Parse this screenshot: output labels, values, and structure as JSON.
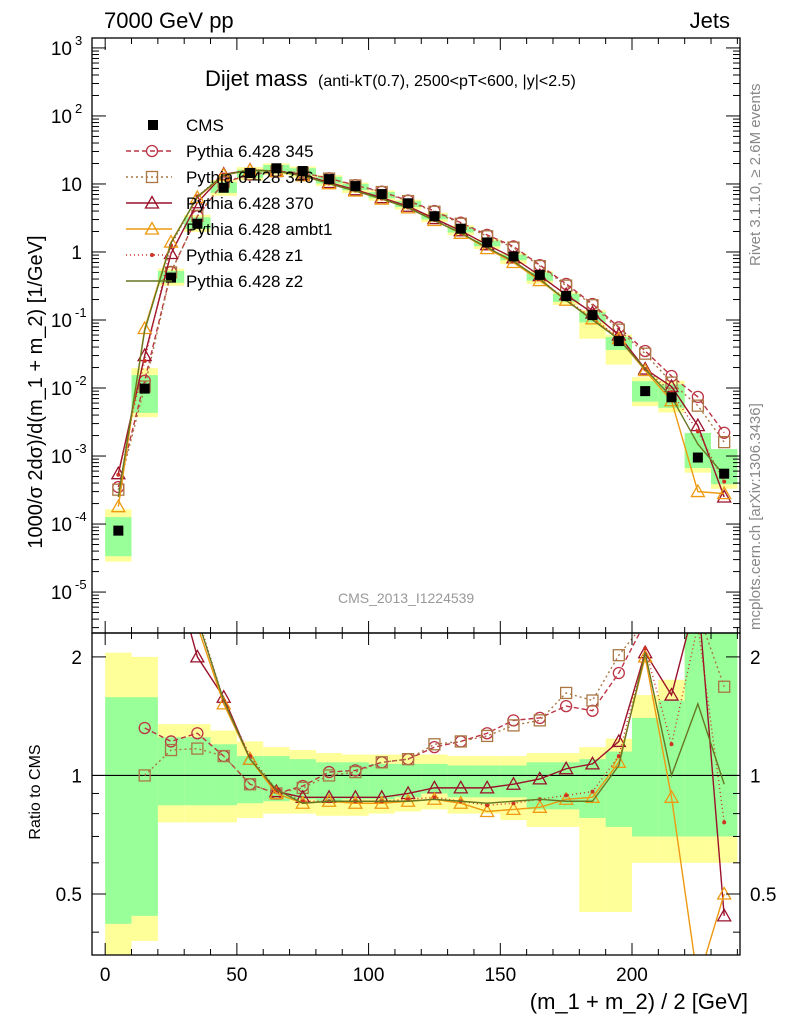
{
  "header": {
    "left": "7000 GeV pp",
    "right": "Jets"
  },
  "side_labels": {
    "rivet": "Rivet 3.1.10, ≥ 2.6M events",
    "mcplots": "mcplots.cern.ch [arXiv:1306.3436]"
  },
  "watermark": "CMS_2013_I1224539",
  "chart_data": {
    "type": "scatter",
    "title": "Dijet mass",
    "subtitle": "(anti-kT(0.7), 2500<pT<600, |y|<2.5)",
    "xlabel": "(m_1 + m_2) / 2 [GeV]",
    "ylabel": "1000/σ 2dσ)/d(m_1 + m_2) [1/GeV]",
    "ratio_ylabel": "Ratio to CMS",
    "xlim": [
      -5,
      241
    ],
    "ylim": [
      2.5e-06,
      1400
    ],
    "ylog": true,
    "ratio_ylim": [
      0.35,
      2.3
    ],
    "x_ticks": [
      "0",
      "50",
      "100",
      "150",
      "200"
    ],
    "y_ticks": [
      "10^-5",
      "10^-4",
      "10^-3",
      "10^-2",
      "10^-1",
      "1",
      "10",
      "10^2",
      "10^3"
    ],
    "ratio_ticks": [
      "0.5",
      "1",
      "2"
    ],
    "legend_position": "top-left",
    "x": [
      5,
      15,
      25,
      35,
      45,
      55,
      65,
      75,
      85,
      95,
      105,
      115,
      125,
      135,
      145,
      155,
      165,
      175,
      185,
      195,
      205,
      215,
      225,
      235
    ],
    "data": {
      "name": "CMS",
      "values": [
        8e-05,
        0.0098,
        0.42,
        2.6,
        8.8,
        14.5,
        17.0,
        15.5,
        11.8,
        9.3,
        7.1,
        5.2,
        3.35,
        2.2,
        1.38,
        0.86,
        0.46,
        0.225,
        0.118,
        0.049,
        0.009,
        0.0073,
        0.00095,
        0.00055
      ],
      "band_inner_lo": [
        0.42,
        0.44,
        0.84,
        0.84,
        0.84,
        0.85,
        0.86,
        0.87,
        0.86,
        0.87,
        0.87,
        0.88,
        0.9,
        0.88,
        0.88,
        0.88,
        0.82,
        0.82,
        0.78,
        0.74,
        0.7,
        0.7,
        0.7,
        0.7
      ],
      "band_inner_hi": [
        1.58,
        1.58,
        1.25,
        1.25,
        1.2,
        1.12,
        1.12,
        1.1,
        1.08,
        1.08,
        1.07,
        1.07,
        1.07,
        1.06,
        1.06,
        1.06,
        1.08,
        1.08,
        1.1,
        1.15,
        1.4,
        1.55,
        2.3,
        2.3
      ],
      "band_outer_lo": [
        0.35,
        0.38,
        0.76,
        0.76,
        0.76,
        0.78,
        0.8,
        0.8,
        0.79,
        0.79,
        0.8,
        0.81,
        0.82,
        0.8,
        0.8,
        0.77,
        0.74,
        0.74,
        0.45,
        0.45,
        0.6,
        0.6,
        0.6,
        0.6
      ],
      "band_outer_hi": [
        2.05,
        2.0,
        1.35,
        1.35,
        1.3,
        1.22,
        1.18,
        1.16,
        1.14,
        1.13,
        1.13,
        1.13,
        1.13,
        1.12,
        1.12,
        1.12,
        1.14,
        1.14,
        1.18,
        1.24,
        1.6,
        1.75,
        2.3,
        2.3
      ]
    },
    "series": [
      {
        "name": "Pythia 6.428 345",
        "color": "#bb3344",
        "dash": "5,3",
        "marker": "circle",
        "values": [
          0.00035,
          0.0128,
          0.51,
          3.35,
          10.5,
          13.7,
          15.2,
          14.6,
          12.1,
          9.6,
          7.7,
          5.7,
          4.0,
          2.7,
          1.78,
          1.21,
          0.64,
          0.34,
          0.172,
          0.078,
          0.035,
          0.015,
          0.0074,
          0.0022
        ],
        "ratio": [
          null,
          1.32,
          1.22,
          1.28,
          1.12,
          0.95,
          0.9,
          0.94,
          1.02,
          1.03,
          1.08,
          1.1,
          1.18,
          1.22,
          1.28,
          1.38,
          1.4,
          1.5,
          1.46,
          1.82,
          2.45,
          2.6,
          2.6,
          null
        ]
      },
      {
        "name": "Pythia 6.428 346",
        "color": "#aa7744",
        "dash": "2,3",
        "marker": "square",
        "values": [
          0.00032,
          0.0105,
          0.5,
          3.4,
          10.7,
          14.0,
          15.4,
          14.6,
          12.0,
          9.5,
          7.6,
          5.6,
          3.9,
          2.6,
          1.7,
          1.16,
          0.62,
          0.32,
          0.165,
          0.072,
          0.032,
          0.012,
          0.0055,
          0.0016
        ],
        "ratio": [
          null,
          1.0,
          1.16,
          1.17,
          1.12,
          0.95,
          0.9,
          0.93,
          1.0,
          1.02,
          1.08,
          1.1,
          1.2,
          1.22,
          1.26,
          1.34,
          1.38,
          1.62,
          1.55,
          2.02,
          2.45,
          2.6,
          2.6,
          1.68
        ]
      },
      {
        "name": "Pythia 6.428 370",
        "color": "#99112a",
        "dash": "",
        "marker": "triangle-open",
        "values": [
          0.00055,
          0.03,
          0.95,
          5.3,
          13.9,
          16.0,
          15.5,
          13.7,
          10.5,
          8.2,
          6.3,
          4.7,
          3.1,
          2.05,
          1.28,
          0.82,
          0.45,
          0.235,
          0.127,
          0.06,
          0.019,
          0.0105,
          0.0028,
          0.00025
        ],
        "ratio": [
          null,
          3.6,
          3.5,
          2.0,
          1.58,
          1.1,
          0.91,
          0.88,
          0.88,
          0.88,
          0.88,
          0.9,
          0.93,
          0.93,
          0.93,
          0.95,
          0.98,
          1.04,
          1.07,
          1.22,
          2.05,
          1.6,
          2.9,
          0.44
        ]
      },
      {
        "name": "Pythia 6.428 ambt1",
        "color": "#ee9911",
        "dash": "",
        "marker": "triangle-open",
        "values": [
          0.00018,
          0.075,
          1.4,
          6.3,
          13.5,
          15.9,
          15.3,
          13.2,
          10.1,
          7.9,
          6.0,
          4.45,
          2.9,
          1.88,
          1.12,
          0.7,
          0.38,
          0.195,
          0.104,
          0.053,
          0.018,
          0.0065,
          0.0003,
          0.00028
        ],
        "ratio": [
          null,
          7.6,
          3.4,
          2.4,
          1.52,
          1.1,
          0.9,
          0.85,
          0.86,
          0.85,
          0.85,
          0.86,
          0.87,
          0.85,
          0.81,
          0.82,
          0.83,
          0.87,
          0.88,
          1.08,
          2.0,
          0.88,
          0.3,
          0.5
        ]
      },
      {
        "name": "Pythia 6.428 z1",
        "color": "#cc3322",
        "dash": "1,3",
        "marker": "star",
        "values": [
          0.00053,
          0.025,
          1.25,
          6.6,
          13.8,
          16.2,
          15.6,
          13.3,
          10.2,
          8.0,
          6.1,
          4.5,
          2.95,
          1.9,
          1.16,
          0.73,
          0.4,
          0.2,
          0.107,
          0.055,
          0.019,
          0.0087,
          0.0023,
          0.00042
        ],
        "ratio": [
          null,
          2.5,
          3.0,
          2.55,
          1.55,
          1.12,
          0.92,
          0.86,
          0.86,
          0.86,
          0.86,
          0.87,
          0.88,
          0.86,
          0.84,
          0.85,
          0.87,
          0.89,
          0.91,
          1.12,
          2.1,
          1.2,
          2.4,
          0.76
        ]
      },
      {
        "name": "Pythia 6.428 z2",
        "color": "#667722",
        "dash": "",
        "marker": "line",
        "values": [
          0.00025,
          0.07,
          1.35,
          6.5,
          13.6,
          16.0,
          15.4,
          13.2,
          10.1,
          7.9,
          6.05,
          4.45,
          2.9,
          1.9,
          1.16,
          0.73,
          0.4,
          0.194,
          0.1,
          0.052,
          0.019,
          0.0074,
          0.0015,
          0.00052
        ],
        "ratio": [
          null,
          7.0,
          3.2,
          2.5,
          1.55,
          1.1,
          0.92,
          0.85,
          0.86,
          0.86,
          0.86,
          0.86,
          0.87,
          0.86,
          0.85,
          0.86,
          0.87,
          0.86,
          0.86,
          1.06,
          2.05,
          1.0,
          1.52,
          0.95
        ]
      }
    ]
  }
}
